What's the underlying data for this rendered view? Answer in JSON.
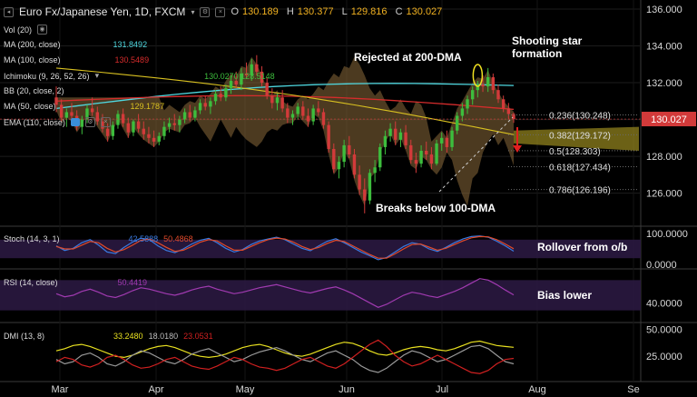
{
  "header": {
    "title": "Euro Fx/Japanese Yen, 1D, FXCM",
    "open_label": "O",
    "open": "130.189",
    "high_label": "H",
    "high": "130.377",
    "low_label": "L",
    "low": "129.816",
    "close_label": "C",
    "close": "130.027"
  },
  "indicators": {
    "vol": "Vol (20)",
    "ma200": "MA (200, close)",
    "ma200_val": "131.8492",
    "ma100": "MA (100, close)",
    "ma100_val": "130.5489",
    "ichimoku": "Ichimoku (9, 26, 52, 26)",
    "ichimoku_vals": "130.0270  128.5148",
    "bb": "BB (20, close, 2)",
    "ma50": "MA (50, close)",
    "ma50_val": "129.1787",
    "ema": "EMA (110, close)",
    "stoch": "Stoch (14, 3, 1)",
    "stoch_k": "42.5888",
    "stoch_d": "50.4868",
    "rsi": "RSI (14, close)",
    "rsi_val": "50.4419",
    "dmi": "DMI (13, 8)",
    "dmi_adx": "33.2480",
    "dmi_plus": "18.0180",
    "dmi_minus": "23.0531"
  },
  "annotations": {
    "rejected": "Rejected at 200-DMA",
    "shooting_star": "Shooting star\nformation",
    "breaks": "Breaks below 100-DMA",
    "rollover": "Rollover from o/b",
    "bias": "Bias lower"
  },
  "fib_levels": [
    {
      "label": "0.236(130.248)"
    },
    {
      "label": "0.382(129.172)"
    },
    {
      "label": "0.5(128.303)"
    },
    {
      "label": "0.618(127.434)"
    },
    {
      "label": "0.786(126.196)"
    }
  ],
  "price_tag": {
    "value": "130.027"
  },
  "colors": {
    "background": "#000000",
    "up": "#3dbd3d",
    "down": "#d23a3a",
    "ma200": "#4fd8e0",
    "ma100": "#d62c2c",
    "ma50": "#d8c020",
    "cloud": "#8a6a3a",
    "stoch_k": "#3a7ae0",
    "stoch_d": "#e04a2a",
    "rsi": "#a03ab0",
    "dmi_adx": "#e8e020",
    "dmi_plus": "#9a9a9a",
    "dmi_minus": "#d02020"
  },
  "chart_data": [
    {
      "type": "candlestick",
      "title": "Euro Fx/Japanese Yen, 1D, FXCM",
      "x_ticks": [
        "Mar",
        "Apr",
        "May",
        "Jun",
        "Jul",
        "Aug",
        "Se"
      ],
      "y_ticks": [
        126.0,
        128.0,
        130.0,
        132.0,
        134.0,
        136.0
      ],
      "ylim": [
        124.3,
        136.2
      ],
      "ohlc": [
        [
          131.2,
          131.8,
          130.4,
          130.8
        ],
        [
          130.8,
          131.1,
          129.9,
          130.1
        ],
        [
          130.1,
          130.6,
          129.6,
          130.4
        ],
        [
          130.4,
          130.9,
          130.0,
          130.2
        ],
        [
          130.2,
          130.5,
          129.4,
          129.6
        ],
        [
          129.6,
          130.2,
          129.2,
          130.0
        ],
        [
          130.0,
          130.8,
          129.8,
          130.6
        ],
        [
          130.6,
          131.2,
          130.2,
          130.4
        ],
        [
          130.4,
          130.7,
          129.7,
          129.9
        ],
        [
          129.9,
          130.3,
          129.3,
          129.5
        ],
        [
          129.5,
          129.8,
          128.8,
          129.1
        ],
        [
          129.1,
          129.9,
          128.9,
          129.7
        ],
        [
          129.7,
          130.5,
          129.5,
          130.3
        ],
        [
          130.3,
          130.6,
          129.6,
          129.8
        ],
        [
          129.8,
          130.1,
          129.0,
          129.3
        ],
        [
          129.3,
          130.0,
          129.1,
          129.9
        ],
        [
          129.9,
          130.3,
          129.3,
          129.5
        ],
        [
          129.5,
          129.9,
          128.9,
          129.2
        ],
        [
          129.2,
          129.6,
          128.7,
          129.0
        ],
        [
          129.0,
          129.4,
          128.5,
          128.8
        ],
        [
          128.8,
          129.3,
          128.6,
          129.1
        ],
        [
          129.1,
          129.9,
          128.9,
          129.6
        ],
        [
          129.6,
          130.1,
          129.3,
          129.8
        ],
        [
          129.8,
          130.3,
          129.4,
          129.7
        ],
        [
          129.7,
          130.2,
          129.3,
          130.0
        ],
        [
          130.0,
          130.6,
          129.8,
          130.4
        ],
        [
          130.4,
          130.8,
          129.9,
          130.1
        ],
        [
          130.1,
          130.7,
          129.9,
          130.5
        ],
        [
          130.5,
          131.1,
          130.3,
          130.9
        ],
        [
          130.9,
          131.3,
          130.5,
          130.7
        ],
        [
          130.7,
          131.2,
          130.3,
          131.0
        ],
        [
          131.0,
          131.6,
          130.8,
          131.4
        ],
        [
          131.4,
          131.8,
          131.0,
          131.2
        ],
        [
          131.2,
          131.9,
          131.0,
          131.7
        ],
        [
          131.7,
          132.4,
          131.4,
          132.1
        ],
        [
          132.1,
          132.6,
          131.7,
          131.9
        ],
        [
          131.9,
          132.8,
          131.6,
          132.5
        ],
        [
          132.5,
          133.1,
          132.2,
          132.4
        ],
        [
          132.4,
          133.3,
          132.1,
          133.0
        ],
        [
          133.0,
          133.5,
          132.4,
          132.6
        ],
        [
          132.6,
          132.9,
          131.8,
          132.0
        ],
        [
          132.0,
          132.3,
          131.1,
          131.3
        ],
        [
          131.3,
          131.7,
          130.6,
          130.9
        ],
        [
          130.9,
          131.4,
          130.5,
          131.2
        ],
        [
          131.2,
          131.6,
          130.4,
          130.6
        ],
        [
          130.6,
          130.9,
          129.8,
          130.1
        ],
        [
          130.1,
          130.5,
          129.7,
          130.3
        ],
        [
          130.3,
          130.9,
          130.0,
          130.7
        ],
        [
          130.7,
          131.0,
          130.0,
          130.2
        ],
        [
          130.2,
          130.6,
          129.6,
          129.9
        ],
        [
          129.9,
          130.8,
          129.7,
          130.6
        ],
        [
          130.6,
          131.0,
          130.2,
          130.4
        ],
        [
          130.4,
          130.6,
          129.5,
          129.7
        ],
        [
          129.7,
          129.9,
          128.2,
          128.4
        ],
        [
          128.4,
          128.7,
          127.1,
          127.3
        ],
        [
          127.3,
          128.0,
          126.8,
          127.7
        ],
        [
          127.7,
          128.9,
          127.4,
          128.6
        ],
        [
          128.6,
          129.1,
          127.9,
          128.1
        ],
        [
          128.1,
          128.4,
          126.8,
          127.0
        ],
        [
          127.0,
          127.5,
          125.9,
          126.2
        ],
        [
          126.2,
          126.8,
          124.9,
          125.6
        ],
        [
          125.6,
          127.3,
          125.4,
          127.1
        ],
        [
          127.1,
          127.8,
          126.6,
          127.4
        ],
        [
          127.4,
          128.7,
          127.2,
          128.5
        ],
        [
          128.5,
          129.4,
          128.1,
          129.1
        ],
        [
          129.1,
          129.8,
          128.8,
          129.5
        ],
        [
          129.5,
          129.9,
          128.6,
          128.9
        ],
        [
          128.9,
          129.5,
          128.5,
          129.3
        ],
        [
          129.3,
          129.7,
          128.4,
          128.6
        ],
        [
          128.6,
          128.9,
          127.6,
          127.8
        ],
        [
          127.8,
          128.2,
          127.1,
          127.6
        ],
        [
          127.6,
          128.6,
          127.4,
          128.3
        ],
        [
          128.3,
          128.8,
          127.8,
          128.1
        ],
        [
          128.1,
          128.5,
          127.3,
          127.6
        ],
        [
          127.6,
          128.9,
          127.5,
          128.7
        ],
        [
          128.7,
          129.3,
          128.3,
          129.0
        ],
        [
          129.0,
          129.4,
          128.2,
          128.5
        ],
        [
          128.5,
          129.6,
          128.3,
          129.4
        ],
        [
          129.4,
          130.4,
          129.2,
          130.2
        ],
        [
          130.2,
          130.9,
          129.9,
          130.6
        ],
        [
          130.6,
          131.3,
          130.3,
          131.1
        ],
        [
          131.1,
          131.8,
          130.8,
          131.6
        ],
        [
          131.6,
          132.1,
          131.2,
          131.9
        ],
        [
          131.9,
          132.4,
          131.5,
          131.8
        ],
        [
          131.8,
          132.8,
          131.5,
          132.3
        ],
        [
          132.3,
          132.5,
          131.4,
          131.6
        ],
        [
          131.6,
          131.9,
          130.9,
          131.1
        ],
        [
          131.1,
          131.3,
          130.4,
          130.6
        ],
        [
          130.6,
          130.9,
          130.0,
          130.3
        ],
        [
          130.3,
          130.377,
          129.816,
          130.027
        ]
      ],
      "series": [
        {
          "name": "MA (200, close)",
          "values": [
            130.6,
            131.8492
          ]
        },
        {
          "name": "MA (100, close)",
          "values": [
            131.0,
            130.5489
          ]
        },
        {
          "name": "MA (50, close)",
          "values": [
            132.8,
            129.1787
          ]
        }
      ],
      "fib": [
        130.248,
        129.172,
        128.303,
        127.434,
        126.196
      ]
    },
    {
      "type": "line",
      "title": "Stoch (14, 3, 1)",
      "y_ticks": [
        0.0,
        100.0
      ],
      "ylim": [
        0,
        100
      ],
      "series": [
        {
          "name": "%K",
          "values": [
            60,
            45,
            52,
            70,
            80,
            62,
            40,
            35,
            55,
            72,
            85,
            80,
            60,
            45,
            38,
            50,
            66,
            78,
            84,
            70,
            52,
            40,
            48,
            64,
            76,
            82,
            88,
            80,
            66,
            52,
            44,
            60,
            75,
            83,
            70,
            55,
            40,
            28,
            15,
            22,
            40,
            58,
            70,
            65,
            50,
            42,
            55,
            70,
            82,
            90,
            92,
            88,
            75,
            60,
            42.5888
          ]
        },
        {
          "name": "%D",
          "values": [
            58,
            50,
            50,
            62,
            74,
            70,
            52,
            40,
            48,
            62,
            78,
            82,
            70,
            55,
            42,
            46,
            58,
            72,
            80,
            76,
            60,
            46,
            46,
            58,
            70,
            80,
            85,
            82,
            72,
            58,
            48,
            55,
            68,
            78,
            74,
            60,
            46,
            32,
            20,
            20,
            34,
            50,
            64,
            66,
            56,
            46,
            52,
            64,
            76,
            86,
            90,
            89,
            80,
            66,
            50.4868
          ]
        }
      ]
    },
    {
      "type": "line",
      "title": "RSI (14, close)",
      "y_ticks": [
        40.0
      ],
      "ylim": [
        20,
        80
      ],
      "series": [
        {
          "name": "RSI",
          "values": [
            52,
            48,
            50,
            55,
            58,
            54,
            49,
            47,
            51,
            56,
            60,
            58,
            55,
            52,
            50,
            53,
            57,
            60,
            62,
            58,
            55,
            52,
            54,
            57,
            60,
            62,
            64,
            61,
            58,
            55,
            53,
            56,
            59,
            61,
            57,
            52,
            46,
            40,
            34,
            38,
            44,
            50,
            54,
            52,
            49,
            47,
            51,
            55,
            60,
            66,
            72,
            70,
            64,
            57,
            50.4419
          ]
        }
      ]
    },
    {
      "type": "line",
      "title": "DMI (13, 8)",
      "y_ticks": [
        25.0,
        50.0
      ],
      "ylim": [
        5,
        52
      ],
      "series": [
        {
          "name": "ADX",
          "values": [
            30,
            32,
            35,
            36,
            34,
            31,
            28,
            25,
            24,
            26,
            29,
            32,
            34,
            35,
            33,
            30,
            27,
            25,
            24,
            25,
            27,
            30,
            33,
            35,
            36,
            34,
            31,
            28,
            26,
            25,
            27,
            30,
            33,
            36,
            38,
            37,
            34,
            30,
            27,
            26,
            28,
            31,
            33,
            34,
            33,
            31,
            30,
            32,
            35,
            38,
            39,
            37,
            35,
            34,
            33.248
          ]
        },
        {
          "name": "+DI",
          "values": [
            22,
            18,
            20,
            26,
            28,
            24,
            18,
            16,
            20,
            26,
            30,
            28,
            24,
            20,
            18,
            22,
            27,
            30,
            32,
            28,
            24,
            20,
            22,
            26,
            29,
            31,
            33,
            30,
            26,
            22,
            20,
            24,
            28,
            30,
            26,
            22,
            16,
            12,
            10,
            14,
            20,
            26,
            30,
            28,
            24,
            20,
            22,
            26,
            30,
            34,
            35,
            32,
            26,
            20,
            18.018
          ]
        },
        {
          "name": "-DI",
          "values": [
            20,
            24,
            22,
            17,
            15,
            18,
            24,
            26,
            22,
            17,
            14,
            15,
            18,
            22,
            24,
            20,
            16,
            14,
            13,
            16,
            20,
            24,
            22,
            18,
            15,
            14,
            12,
            14,
            18,
            22,
            24,
            20,
            16,
            14,
            18,
            24,
            30,
            36,
            40,
            34,
            26,
            20,
            16,
            18,
            22,
            26,
            22,
            18,
            14,
            10,
            9,
            12,
            18,
            22,
            23.0531
          ]
        }
      ]
    }
  ]
}
